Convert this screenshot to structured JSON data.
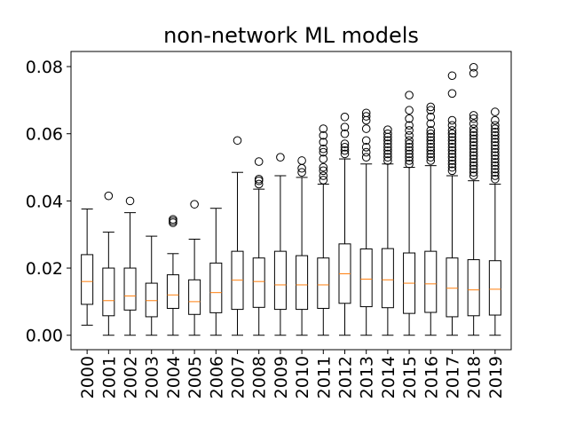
{
  "chart_data": {
    "type": "boxplot",
    "title": "non-network ML models",
    "xlabel": "",
    "ylabel": "",
    "ylim": [
      -0.0043,
      0.0845
    ],
    "yticks": [
      "0.00",
      "0.02",
      "0.04",
      "0.06",
      "0.08"
    ],
    "ytick_values": [
      0.0,
      0.02,
      0.04,
      0.06,
      0.08
    ],
    "grid": false,
    "legend": "none",
    "colors": {
      "box": "#000000",
      "median": "#ff7f0e",
      "flier": "#000000"
    },
    "categories": [
      "2000",
      "2001",
      "2002",
      "2003",
      "2004",
      "2005",
      "2006",
      "2007",
      "2008",
      "2009",
      "2010",
      "2011",
      "2012",
      "2013",
      "2014",
      "2015",
      "2016",
      "2017",
      "2018",
      "2019"
    ],
    "boxes": [
      {
        "min": 0.003,
        "q1": 0.0092,
        "median": 0.016,
        "q3": 0.024,
        "max": 0.0376,
        "fliers": []
      },
      {
        "min": 0.0,
        "q1": 0.0058,
        "median": 0.0103,
        "q3": 0.02,
        "max": 0.0307,
        "fliers": [
          0.0415
        ]
      },
      {
        "min": 0.0,
        "q1": 0.0075,
        "median": 0.0117,
        "q3": 0.02,
        "max": 0.0365,
        "fliers": [
          0.04
        ]
      },
      {
        "min": 0.0,
        "q1": 0.0055,
        "median": 0.0103,
        "q3": 0.0155,
        "max": 0.0295,
        "fliers": []
      },
      {
        "min": 0.0,
        "q1": 0.008,
        "median": 0.012,
        "q3": 0.018,
        "max": 0.0243,
        "fliers": [
          0.0335,
          0.034,
          0.0345
        ]
      },
      {
        "min": 0.0,
        "q1": 0.0062,
        "median": 0.01,
        "q3": 0.0165,
        "max": 0.0286,
        "fliers": [
          0.039
        ]
      },
      {
        "min": 0.0,
        "q1": 0.0067,
        "median": 0.0127,
        "q3": 0.0215,
        "max": 0.0378,
        "fliers": []
      },
      {
        "min": 0.0,
        "q1": 0.0077,
        "median": 0.0164,
        "q3": 0.025,
        "max": 0.0485,
        "fliers": [
          0.058
        ]
      },
      {
        "min": 0.0,
        "q1": 0.0083,
        "median": 0.016,
        "q3": 0.023,
        "max": 0.0435,
        "fliers": [
          0.045,
          0.046,
          0.0465,
          0.0517
        ]
      },
      {
        "min": 0.0,
        "q1": 0.0077,
        "median": 0.015,
        "q3": 0.025,
        "max": 0.0475,
        "fliers": [
          0.053
        ]
      },
      {
        "min": 0.0,
        "q1": 0.0077,
        "median": 0.015,
        "q3": 0.0237,
        "max": 0.047,
        "fliers": [
          0.0485,
          0.0497,
          0.052
        ]
      },
      {
        "min": 0.0,
        "q1": 0.008,
        "median": 0.015,
        "q3": 0.023,
        "max": 0.045,
        "fliers": [
          0.0462,
          0.0475,
          0.049,
          0.05,
          0.0525,
          0.0545,
          0.0555,
          0.0575,
          0.0595,
          0.0615
        ]
      },
      {
        "min": 0.0,
        "q1": 0.0095,
        "median": 0.0183,
        "q3": 0.0272,
        "max": 0.0525,
        "fliers": [
          0.054,
          0.055,
          0.056,
          0.057,
          0.06,
          0.062,
          0.065
        ]
      },
      {
        "min": 0.0,
        "q1": 0.0085,
        "median": 0.0167,
        "q3": 0.0257,
        "max": 0.051,
        "fliers": [
          0.053,
          0.0545,
          0.056,
          0.058,
          0.0615,
          0.064,
          0.0652,
          0.0662
        ]
      },
      {
        "min": 0.0,
        "q1": 0.0082,
        "median": 0.0165,
        "q3": 0.0258,
        "max": 0.051,
        "fliers": [
          0.052,
          0.053,
          0.054,
          0.055,
          0.056,
          0.057,
          0.058,
          0.059,
          0.06,
          0.0612
        ]
      },
      {
        "min": 0.0,
        "q1": 0.0065,
        "median": 0.0155,
        "q3": 0.0245,
        "max": 0.05,
        "fliers": [
          0.051,
          0.052,
          0.053,
          0.054,
          0.055,
          0.056,
          0.057,
          0.058,
          0.0595,
          0.061,
          0.0625,
          0.0645,
          0.067,
          0.0715
        ]
      },
      {
        "min": 0.0,
        "q1": 0.0068,
        "median": 0.0153,
        "q3": 0.025,
        "max": 0.0505,
        "fliers": [
          0.052,
          0.053,
          0.054,
          0.055,
          0.056,
          0.057,
          0.058,
          0.059,
          0.06,
          0.061,
          0.063,
          0.065,
          0.067,
          0.068
        ]
      },
      {
        "min": 0.0,
        "q1": 0.0055,
        "median": 0.014,
        "q3": 0.023,
        "max": 0.0475,
        "fliers": [
          0.049,
          0.05,
          0.051,
          0.052,
          0.053,
          0.054,
          0.055,
          0.056,
          0.057,
          0.058,
          0.059,
          0.06,
          0.061,
          0.0625,
          0.064,
          0.072,
          0.0773
        ]
      },
      {
        "min": 0.0,
        "q1": 0.0058,
        "median": 0.0135,
        "q3": 0.0225,
        "max": 0.046,
        "fliers": [
          0.0475,
          0.0485,
          0.0495,
          0.0505,
          0.0515,
          0.0525,
          0.0535,
          0.0545,
          0.0555,
          0.0565,
          0.0575,
          0.0585,
          0.0595,
          0.0605,
          0.0615,
          0.063,
          0.0645,
          0.0655,
          0.078,
          0.0798
        ]
      },
      {
        "min": 0.0,
        "q1": 0.006,
        "median": 0.0137,
        "q3": 0.0222,
        "max": 0.045,
        "fliers": [
          0.0465,
          0.0475,
          0.0485,
          0.0495,
          0.0505,
          0.0515,
          0.0525,
          0.0535,
          0.0545,
          0.0555,
          0.0565,
          0.0575,
          0.0585,
          0.0595,
          0.0605,
          0.0615,
          0.0625,
          0.064,
          0.0665
        ]
      }
    ]
  }
}
